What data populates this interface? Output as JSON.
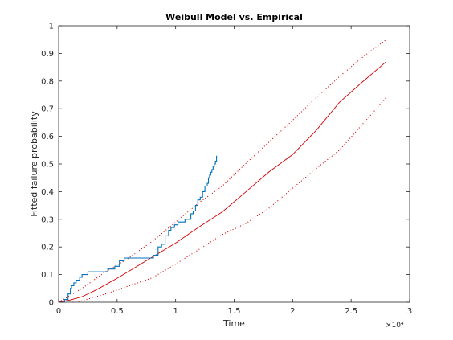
{
  "chart_data": {
    "type": "line",
    "title": "Weibull Model vs. Empirical",
    "xlabel": "Time",
    "ylabel": "Fitted failure probability",
    "x_exponent_label": "×10⁴",
    "xlim": [
      0,
      3
    ],
    "ylim": [
      0,
      1
    ],
    "x_ticks": [
      0,
      0.5,
      1,
      1.5,
      2,
      2.5,
      3
    ],
    "x_tick_labels": [
      "0",
      "0.5",
      "1",
      "1.5",
      "2",
      "2.5",
      "3"
    ],
    "y_ticks": [
      0,
      0.1,
      0.2,
      0.3,
      0.4,
      0.5,
      0.6,
      0.7,
      0.8,
      0.9,
      1
    ],
    "y_tick_labels": [
      "0",
      "0.1",
      "0.2",
      "0.3",
      "0.4",
      "0.5",
      "0.6",
      "0.7",
      "0.8",
      "0.9",
      "1"
    ],
    "grid": false,
    "colors": {
      "model": "#d40000",
      "empirical": "#0072bd",
      "axes": "#262626"
    },
    "series": [
      {
        "style": "solid",
        "color": "#d40000",
        "x": [
          0,
          0.1,
          0.2,
          0.3,
          0.4,
          0.5,
          0.6,
          0.8,
          1.0,
          1.2,
          1.4,
          1.6,
          1.8,
          2.0,
          2.2,
          2.4,
          2.6,
          2.8
        ],
        "y": [
          0,
          0.008,
          0.02,
          0.04,
          0.063,
          0.087,
          0.112,
          0.163,
          0.214,
          0.272,
          0.327,
          0.399,
          0.472,
          0.534,
          0.621,
          0.723,
          0.798,
          0.87
        ]
      },
      {
        "style": "dotted",
        "color": "#d40000",
        "x": [
          0,
          0.2,
          0.4,
          0.6,
          0.8,
          1.0,
          1.2,
          1.4,
          1.6,
          1.8,
          2.0,
          2.2,
          2.4,
          2.6,
          2.8
        ],
        "y": [
          0,
          0.05,
          0.11,
          0.16,
          0.22,
          0.29,
          0.36,
          0.42,
          0.502,
          0.58,
          0.658,
          0.739,
          0.816,
          0.887,
          0.95
        ]
      },
      {
        "style": "dotted",
        "color": "#d40000",
        "x": [
          0.12,
          0.2,
          0.4,
          0.6,
          0.8,
          1.0,
          1.2,
          1.4,
          1.6,
          1.8,
          2.0,
          2.2,
          2.4,
          2.6,
          2.8
        ],
        "y": [
          0,
          0.005,
          0.03,
          0.059,
          0.088,
          0.138,
          0.191,
          0.245,
          0.285,
          0.341,
          0.412,
          0.483,
          0.55,
          0.645,
          0.74
        ]
      },
      {
        "style": "stairs",
        "color": "#0072bd",
        "x": [
          0,
          0.05,
          0.08,
          0.1,
          0.11,
          0.13,
          0.15,
          0.18,
          0.2,
          0.25,
          0.28,
          0.35,
          0.42,
          0.48,
          0.52,
          0.56,
          0.68,
          0.75,
          0.81,
          0.85,
          0.88,
          0.91,
          0.94,
          0.96,
          0.99,
          1.02,
          1.05,
          1.08,
          1.11,
          1.13,
          1.15,
          1.17,
          1.19,
          1.21,
          1.23,
          1.25,
          1.27,
          1.28,
          1.29,
          1.3,
          1.31,
          1.32,
          1.33,
          1.34,
          1.35
        ],
        "y": [
          0,
          0.01,
          0.03,
          0.05,
          0.06,
          0.07,
          0.08,
          0.09,
          0.1,
          0.11,
          0.11,
          0.11,
          0.12,
          0.13,
          0.15,
          0.16,
          0.16,
          0.16,
          0.17,
          0.2,
          0.21,
          0.24,
          0.26,
          0.27,
          0.28,
          0.29,
          0.29,
          0.3,
          0.3,
          0.32,
          0.33,
          0.35,
          0.37,
          0.38,
          0.4,
          0.42,
          0.43,
          0.45,
          0.46,
          0.47,
          0.48,
          0.49,
          0.5,
          0.51,
          0.53
        ]
      }
    ]
  }
}
